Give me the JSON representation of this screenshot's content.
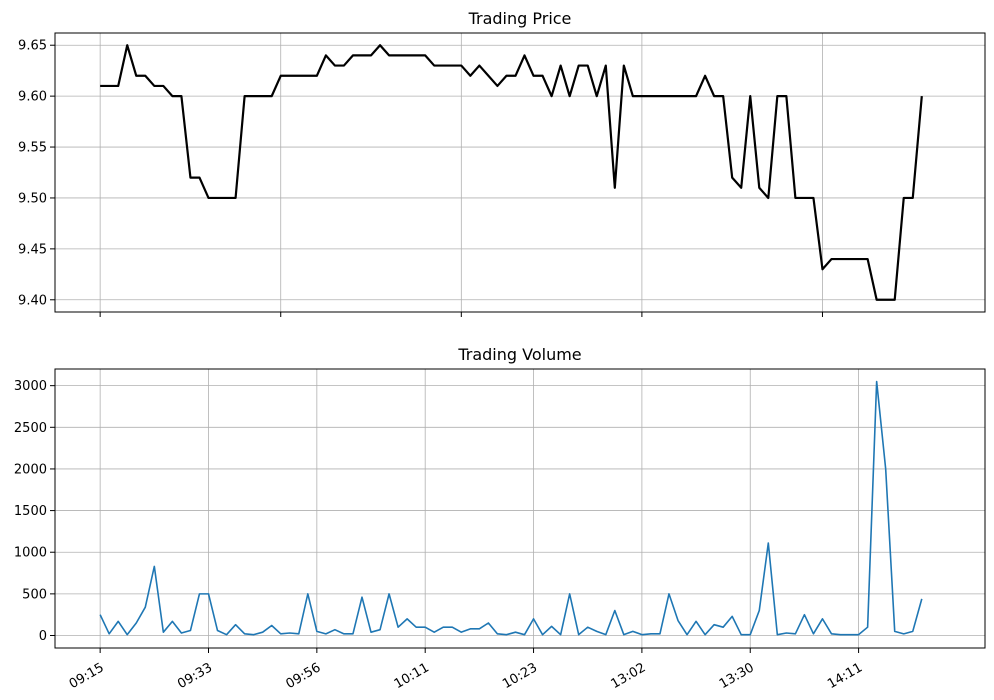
{
  "chart_data": [
    {
      "type": "line",
      "title": "Trading Price",
      "xlabel": "",
      "ylabel": "",
      "ylim": [
        9.388,
        9.662
      ],
      "yticks": [
        9.4,
        9.45,
        9.5,
        9.55,
        9.6,
        9.65
      ],
      "ytick_labels": [
        "9.40",
        "9.45",
        "9.50",
        "9.55",
        "9.60",
        "9.65"
      ],
      "grid": true,
      "line_color": "#000000",
      "x_index_range": [
        -5,
        98
      ],
      "x_tick_indices": [
        0,
        20,
        40,
        60,
        80
      ],
      "series": [
        {
          "values": [
            9.61,
            9.61,
            9.61,
            9.65,
            9.62,
            9.62,
            9.61,
            9.61,
            9.6,
            9.6,
            9.52,
            9.52,
            9.5,
            9.5,
            9.5,
            9.5,
            9.6,
            9.6,
            9.6,
            9.6,
            9.62,
            9.62,
            9.62,
            9.62,
            9.62,
            9.64,
            9.63,
            9.63,
            9.64,
            9.64,
            9.64,
            9.65,
            9.64,
            9.64,
            9.64,
            9.64,
            9.64,
            9.63,
            9.63,
            9.63,
            9.63,
            9.62,
            9.63,
            9.62,
            9.61,
            9.62,
            9.62,
            9.64,
            9.62,
            9.62,
            9.6,
            9.63,
            9.6,
            9.63,
            9.63,
            9.6,
            9.63,
            9.51,
            9.63,
            9.6,
            9.6,
            9.6,
            9.6,
            9.6,
            9.6,
            9.6,
            9.6,
            9.62,
            9.6,
            9.6,
            9.52,
            9.51,
            9.6,
            9.51,
            9.5,
            9.6,
            9.6,
            9.5,
            9.5,
            9.5,
            9.43,
            9.44,
            9.44,
            9.44,
            9.44,
            9.44,
            9.4,
            9.4,
            9.4,
            9.5,
            9.5,
            9.6
          ]
        }
      ]
    },
    {
      "type": "line",
      "title": "Trading Volume",
      "xlabel": "",
      "ylabel": "",
      "ylim": [
        -150,
        3200
      ],
      "yticks": [
        0,
        500,
        1000,
        1500,
        2000,
        2500,
        3000
      ],
      "ytick_labels": [
        "0",
        "500",
        "1000",
        "1500",
        "2000",
        "2500",
        "3000"
      ],
      "grid": true,
      "line_color": "#1f77b4",
      "x_index_range": [
        -5,
        98
      ],
      "x_tick_indices": [
        0,
        12,
        24,
        36,
        48,
        60,
        72,
        84
      ],
      "x_tick_labels": [
        "09:15",
        "09:33",
        "09:56",
        "10:11",
        "10:23",
        "13:02",
        "13:30",
        "14:11"
      ],
      "series": [
        {
          "values": [
            250,
            20,
            170,
            10,
            150,
            340,
            830,
            40,
            170,
            30,
            60,
            500,
            500,
            60,
            10,
            130,
            20,
            10,
            40,
            120,
            20,
            30,
            20,
            500,
            50,
            20,
            70,
            20,
            20,
            460,
            40,
            70,
            500,
            100,
            200,
            100,
            100,
            40,
            100,
            100,
            40,
            80,
            80,
            150,
            20,
            10,
            40,
            10,
            200,
            10,
            110,
            10,
            500,
            10,
            100,
            50,
            10,
            300,
            10,
            50,
            10,
            20,
            20,
            500,
            180,
            10,
            170,
            10,
            130,
            100,
            230,
            10,
            10,
            300,
            1110,
            10,
            30,
            20,
            250,
            20,
            200,
            20,
            10,
            10,
            10,
            100,
            3050,
            2000,
            50,
            20,
            50,
            440
          ]
        }
      ]
    }
  ]
}
